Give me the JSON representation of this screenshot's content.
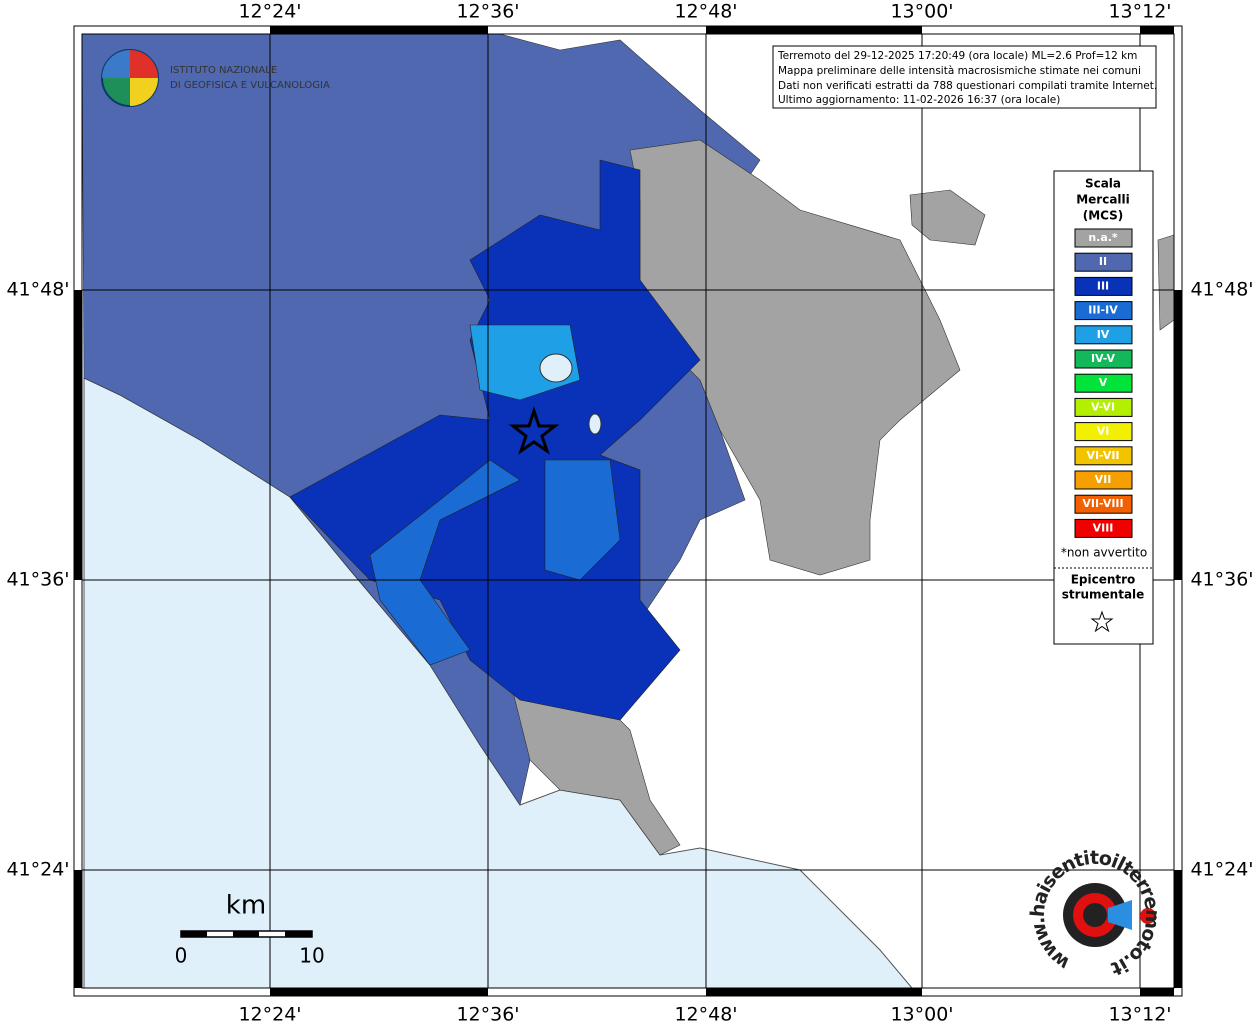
{
  "map": {
    "lon_labels": [
      "12°24'",
      "12°36'",
      "12°48'",
      "13°00'",
      "13°12'"
    ],
    "lat_labels": [
      "41°48'",
      "41°36'",
      "41°24'"
    ],
    "info": [
      "Terremoto del 29-12-2025 17:20:49 (ora locale) ML=2.6 Prof=12 km",
      "Mappa preliminare delle intensità macrosismiche stimate nei comuni",
      "Dati non verificati estratti da 788 questionari compilati tramite Internet.",
      "Ultimo aggiornamento: 11-02-2026 16:37 (ora locale)"
    ],
    "logo": [
      "ISTITUTO NAZIONALE",
      "DI GEOFISICA E VULCANOLOGIA"
    ],
    "site": "www.haisentitoilterremoto.it",
    "scale": {
      "unit": "km",
      "labels": [
        "0",
        "10"
      ]
    },
    "legend": {
      "title": [
        "Scala",
        "Mercalli",
        "(MCS)"
      ],
      "items": [
        {
          "label": "n.a.*",
          "color": "#a3a3a3"
        },
        {
          "label": "II",
          "color": "#4f68b0"
        },
        {
          "label": "III",
          "color": "#0a32b8"
        },
        {
          "label": "III-IV",
          "color": "#1a6cd4"
        },
        {
          "label": "IV",
          "color": "#1f9fe6"
        },
        {
          "label": "IV-V",
          "color": "#12b85a"
        },
        {
          "label": "V",
          "color": "#00e33a"
        },
        {
          "label": "V-VI",
          "color": "#b4ee00"
        },
        {
          "label": "VI",
          "color": "#f2f000"
        },
        {
          "label": "VI-VII",
          "color": "#f2c400"
        },
        {
          "label": "VII",
          "color": "#f5a000"
        },
        {
          "label": "VII-VIII",
          "color": "#f26000"
        },
        {
          "label": "VIII",
          "color": "#f20000"
        }
      ],
      "note": "*non avvertito",
      "epicenter": [
        "Epicentro",
        "strumentale"
      ]
    }
  }
}
